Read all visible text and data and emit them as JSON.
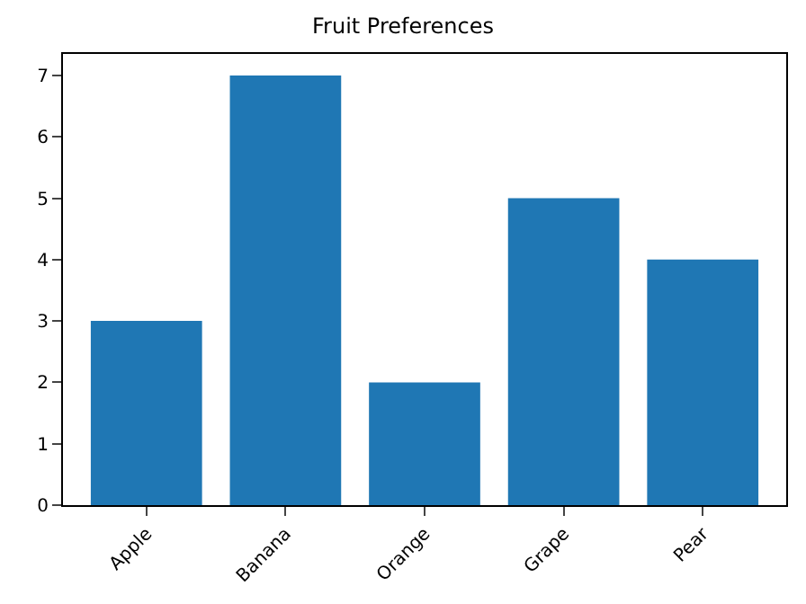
{
  "chart_data": {
    "type": "bar",
    "title": "Fruit Preferences",
    "categories": [
      "Apple",
      "Banana",
      "Orange",
      "Grape",
      "Pear"
    ],
    "values": [
      3,
      7,
      2,
      5,
      4
    ],
    "color": "#1f77b4",
    "ylim": [
      0,
      7.35
    ],
    "yticks": [
      0,
      1,
      2,
      3,
      4,
      5,
      6,
      7
    ]
  }
}
